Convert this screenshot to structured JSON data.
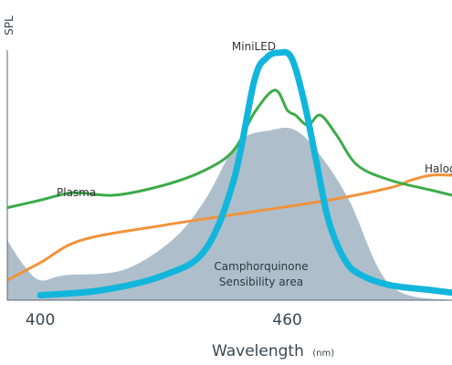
{
  "chart_data": {
    "type": "line",
    "title": "",
    "xlabel": "Wavelength",
    "xlabel_unit": "(nm)",
    "ylabel": "SPL",
    "xlim": [
      392,
      500
    ],
    "ylim": [
      0,
      100
    ],
    "x_ticks": [
      400,
      460
    ],
    "grid": false,
    "legend": "none (series labelled inline)",
    "colors": {
      "camphorquinone": "#aebfcb",
      "miniled": "#12b6dc",
      "plasma": "#3cab4a",
      "halogen": "#f2923a",
      "axis": "#5d6770",
      "text": "#3a4750"
    },
    "series": [
      {
        "name": "MiniLED",
        "key": "miniled",
        "x": [
          400,
          415,
          430,
          440,
          447,
          452,
          455,
          458,
          461,
          464,
          467,
          470,
          474,
          478,
          485,
          495,
          505
        ],
        "y": [
          2,
          4,
          10,
          20,
          48,
          88,
          97,
          99,
          97,
          80,
          56,
          32,
          16,
          10,
          6,
          4,
          2
        ]
      },
      {
        "name": "Plasma",
        "key": "plasma",
        "x": [
          392,
          400,
          408,
          418,
          430,
          440,
          447,
          452,
          457,
          460,
          462,
          465,
          468,
          472,
          477,
          485,
          495,
          500
        ],
        "y": [
          37,
          40,
          43,
          42,
          46,
          52,
          60,
          75,
          84,
          76,
          74,
          70,
          74,
          66,
          54,
          48,
          44,
          42
        ]
      },
      {
        "name": "Halogen",
        "key": "halogen",
        "x": [
          392,
          400,
          410,
          430,
          450,
          470,
          485,
          490,
          495,
          500
        ],
        "y": [
          8,
          15,
          24,
          30,
          35,
          40,
          45,
          48,
          50,
          50
        ]
      }
    ],
    "area": {
      "name": "Camphorquinone Sensibility area",
      "label_lines": [
        "Camphorquinone",
        "Sensibility area"
      ],
      "key": "camphorquinone",
      "x": [
        392,
        396,
        400,
        406,
        420,
        432,
        440,
        448,
        456,
        462,
        468,
        475,
        485,
        500
      ],
      "y": [
        24,
        14,
        8,
        10,
        12,
        24,
        40,
        63,
        68,
        68,
        58,
        40,
        6,
        0
      ]
    }
  }
}
